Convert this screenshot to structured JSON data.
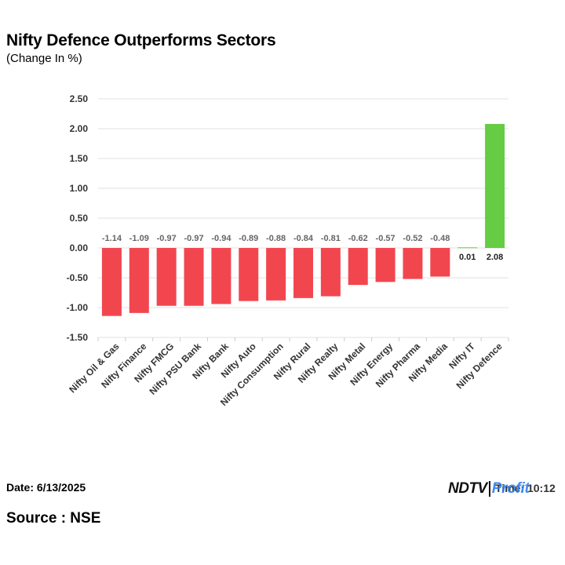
{
  "header": {
    "title": "Nifty Defence Outperforms Sectors",
    "subtitle": "(Change In %)"
  },
  "footer": {
    "date": "Date: 6/13/2025",
    "time": "Time: 10:12",
    "source": "Source : NSE",
    "logo_part1": "NDTV",
    "logo_part2": "Profit"
  },
  "colors": {
    "negative": "#f2464f",
    "positive": "#66cc44",
    "grid": "#e0e0e0"
  },
  "chart_data": {
    "type": "bar",
    "title": "Nifty Defence Outperforms Sectors",
    "subtitle": "(Change In %)",
    "categories": [
      "Nifty Oil & Gas",
      "Nifty Finance",
      "Nifty FMCG",
      "Nifty PSU Bank",
      "Nifty Bank",
      "Nifty Auto",
      "Nifty Consumption",
      "Nifty Rural",
      "Nifty Realty",
      "Nifty Metal",
      "Nifty Energy",
      "Nifty Pharma",
      "Nifty Media",
      "Nifty IT",
      "Nifty Defence"
    ],
    "values": [
      -1.14,
      -1.09,
      -0.97,
      -0.97,
      -0.94,
      -0.89,
      -0.88,
      -0.84,
      -0.81,
      -0.62,
      -0.57,
      -0.52,
      -0.48,
      0.01,
      2.08
    ],
    "data_labels": [
      "-1.14",
      "-1.09",
      "-0.97",
      "-0.97",
      "-0.94",
      "-0.89",
      "-0.88",
      "-0.84",
      "-0.81",
      "-0.62",
      "-0.57",
      "-0.52",
      "-0.48",
      "0.01",
      "2.08"
    ],
    "yticks": [
      "2.50",
      "2.00",
      "1.50",
      "1.00",
      "0.50",
      "0.00",
      "-0.50",
      "-1.00",
      "-1.50"
    ],
    "ylim": [
      -1.5,
      2.5
    ],
    "grid": true,
    "legend": false
  }
}
